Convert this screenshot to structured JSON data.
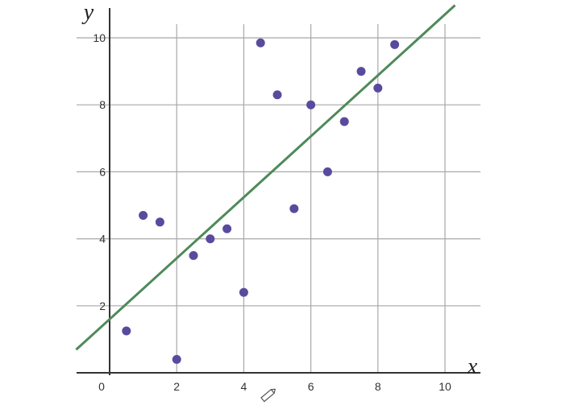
{
  "chart_data": {
    "type": "scatter",
    "xlabel": "x",
    "ylabel": "y",
    "xlim": [
      -1,
      10
    ],
    "ylim": [
      -0.1,
      11
    ],
    "xticks": [
      0,
      2,
      4,
      6,
      8,
      10
    ],
    "yticks": [
      2,
      4,
      6,
      8,
      10
    ],
    "grid": true,
    "colors": {
      "points": "#5a4a9e",
      "fit_line": "#4e8a5a",
      "grid": "#a8a8a8"
    },
    "points": [
      {
        "x": 0.5,
        "y": 1.25
      },
      {
        "x": 1.0,
        "y": 4.7
      },
      {
        "x": 1.5,
        "y": 4.5
      },
      {
        "x": 2.0,
        "y": 0.4
      },
      {
        "x": 2.5,
        "y": 3.5
      },
      {
        "x": 3.0,
        "y": 4.0
      },
      {
        "x": 3.5,
        "y": 4.3
      },
      {
        "x": 4.0,
        "y": 2.4
      },
      {
        "x": 4.5,
        "y": 9.85
      },
      {
        "x": 5.0,
        "y": 8.3
      },
      {
        "x": 5.5,
        "y": 4.9
      },
      {
        "x": 6.0,
        "y": 8.0
      },
      {
        "x": 6.5,
        "y": 6.0
      },
      {
        "x": 7.0,
        "y": 7.5
      },
      {
        "x": 7.5,
        "y": 9.0
      },
      {
        "x": 8.0,
        "y": 8.5
      },
      {
        "x": 8.5,
        "y": 9.8
      }
    ],
    "fit_line": {
      "intercept": 1.6,
      "slope": 0.91,
      "x_range": [
        -1,
        10.3
      ]
    }
  },
  "icons": {
    "cursor": "pencil-icon"
  }
}
